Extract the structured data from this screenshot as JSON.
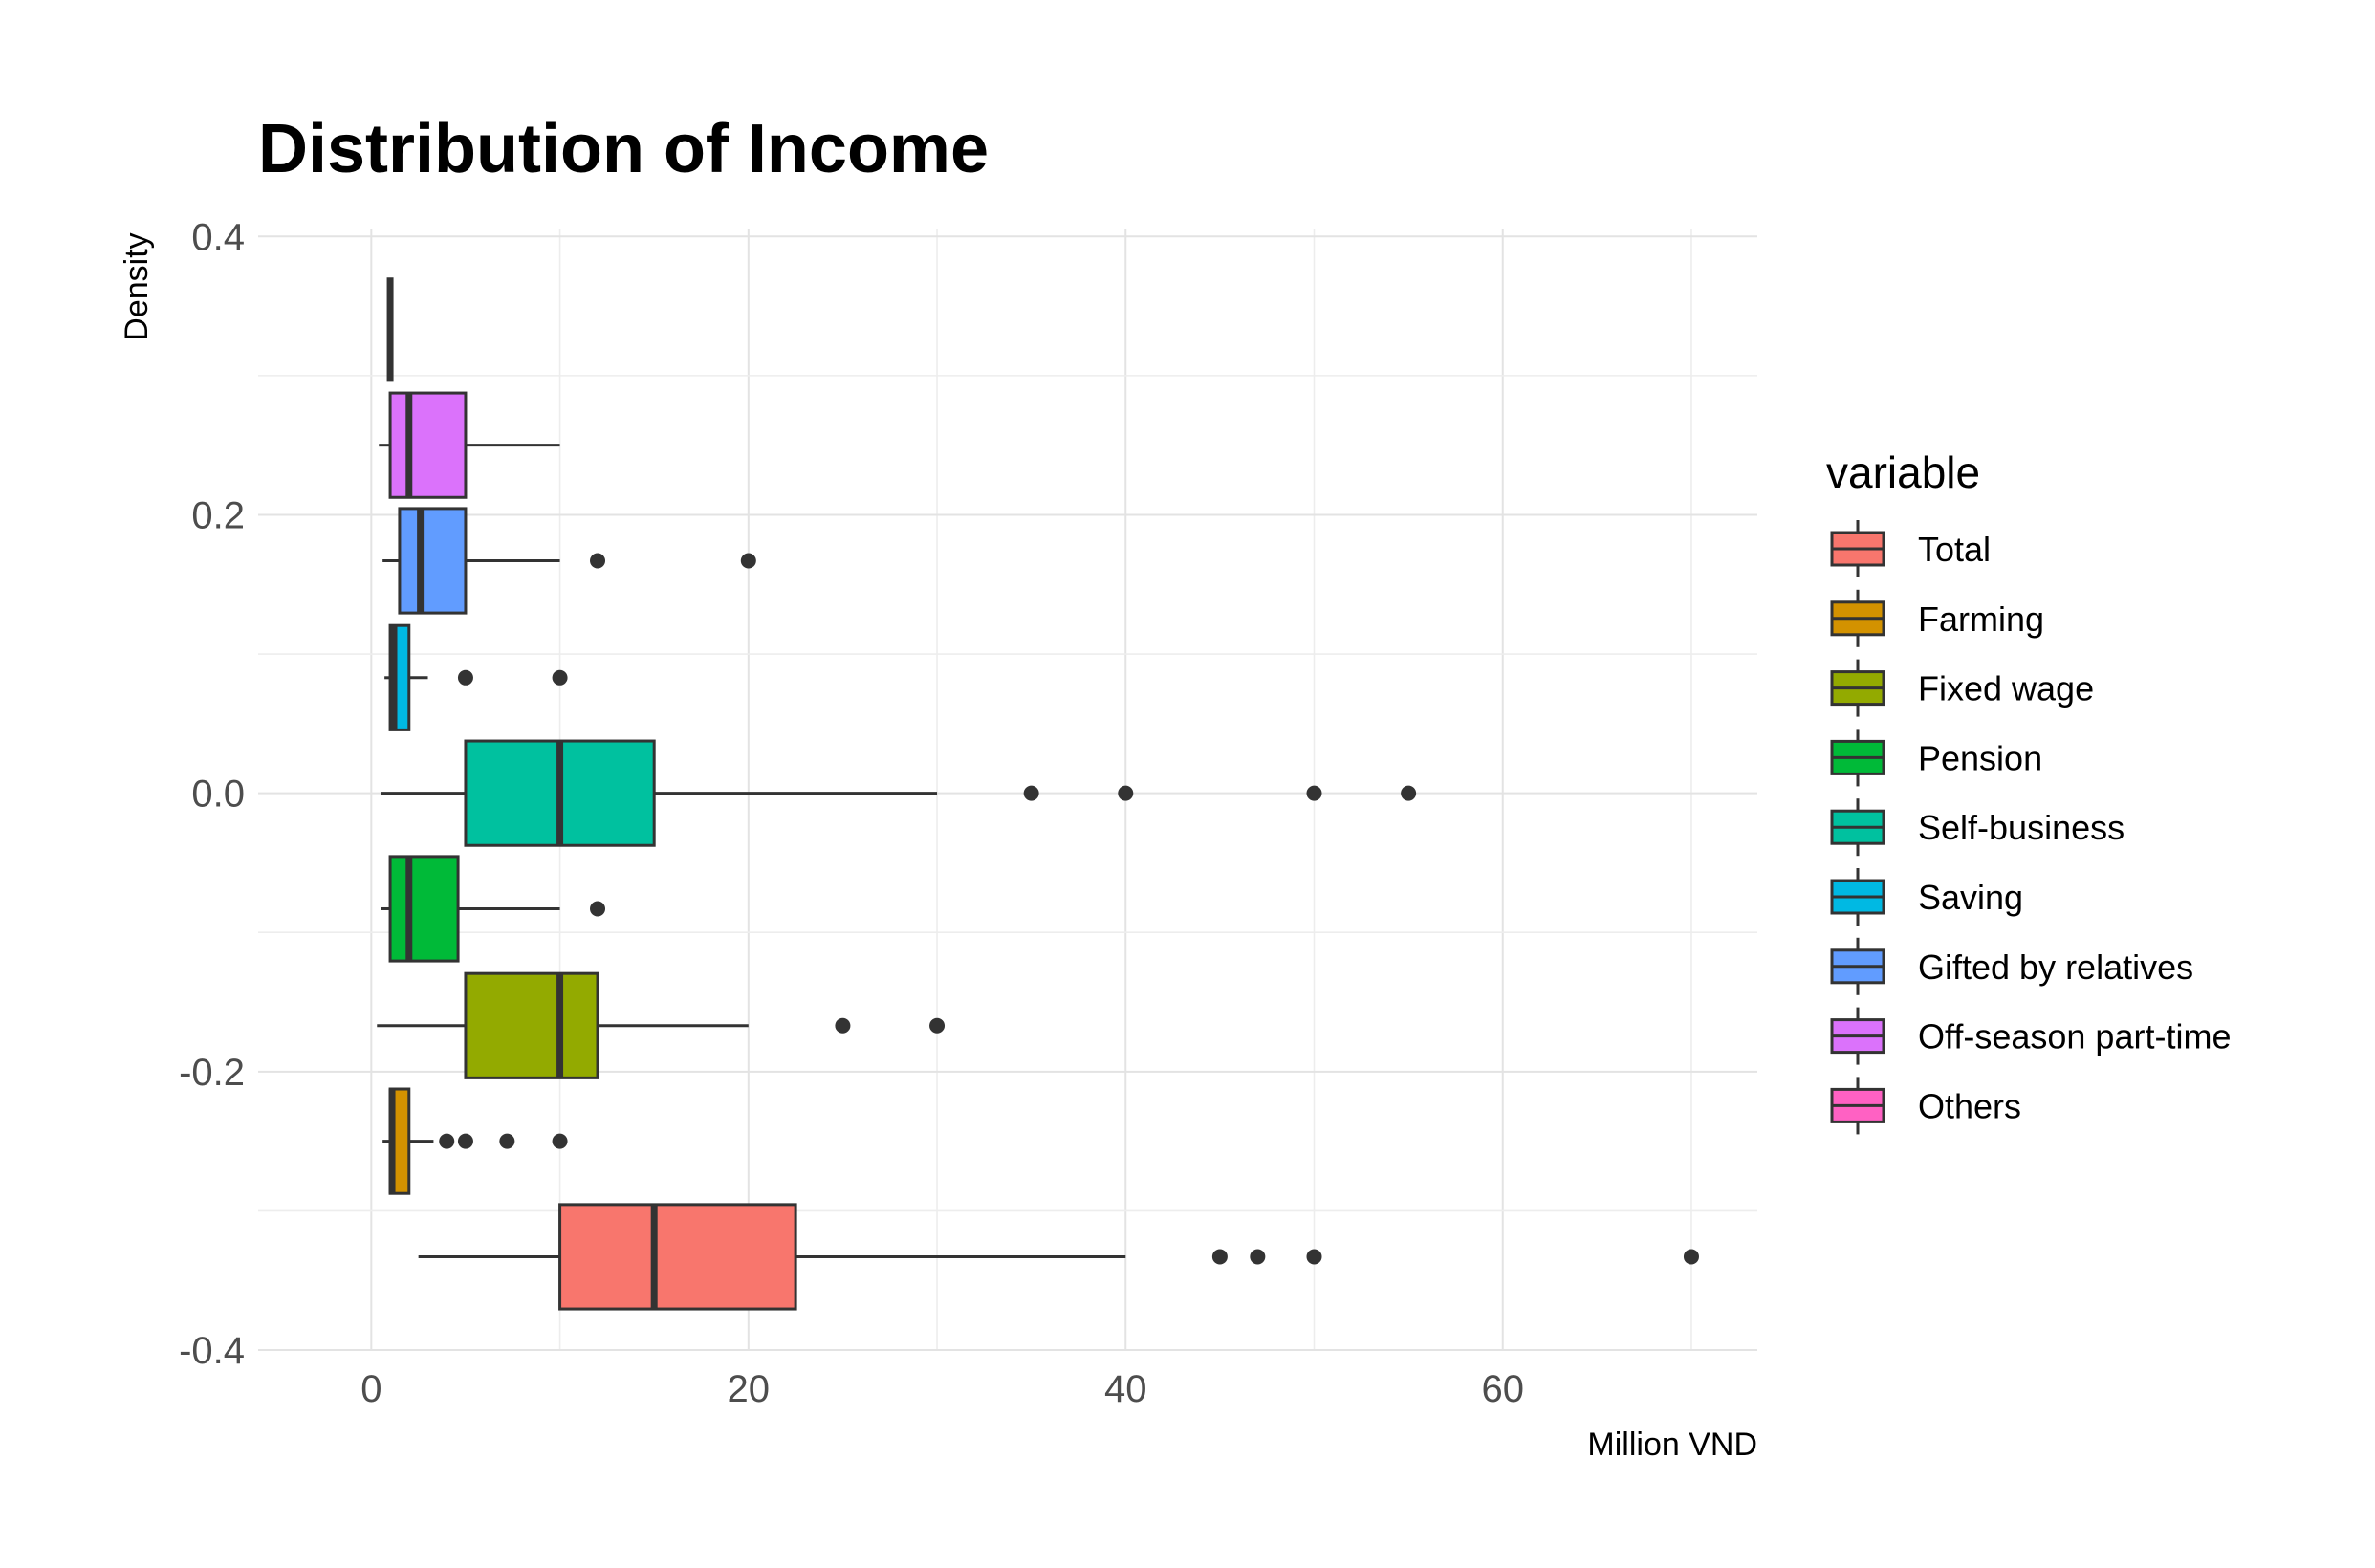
{
  "chart_data": {
    "type": "boxplot",
    "title": "Distribution of Income",
    "xlabel": "Million VND",
    "ylabel": "Density",
    "xlim": [
      -6,
      73.5
    ],
    "ylim": [
      -0.4,
      0.405
    ],
    "x_ticks": [
      0,
      20,
      40,
      60
    ],
    "x_tick_labels": [
      "0",
      "20",
      "40",
      "60"
    ],
    "y_ticks": [
      0.4,
      0.2,
      0.0,
      -0.2,
      -0.4
    ],
    "y_tick_labels": [
      "0.4",
      "0.2",
      "0.0",
      "-0.2",
      "-0.4"
    ],
    "grid": true,
    "legend_title": "variable",
    "legend_position": "right",
    "series": [
      {
        "name": "Total",
        "color": "#F8766D",
        "y": -0.333,
        "whisker_low": 2.5,
        "q1": 10,
        "median": 15,
        "q3": 22.5,
        "whisker_high": 40,
        "outliers": [
          45,
          47,
          50,
          70
        ]
      },
      {
        "name": "Farming",
        "color": "#D39200",
        "y": -0.25,
        "whisker_low": 0.6,
        "q1": 1,
        "median": 1.1,
        "q3": 2,
        "whisker_high": 3.3,
        "outliers": [
          4,
          5,
          7.2,
          10
        ]
      },
      {
        "name": "Fixed wage",
        "color": "#93AA00",
        "y": -0.167,
        "whisker_low": 0.3,
        "q1": 5,
        "median": 10,
        "q3": 12,
        "whisker_high": 20,
        "outliers": [
          25,
          30
        ]
      },
      {
        "name": "Pension",
        "color": "#00BA38",
        "y": -0.083,
        "whisker_low": 0.5,
        "q1": 1,
        "median": 2,
        "q3": 4.6,
        "whisker_high": 10,
        "outliers": [
          12
        ]
      },
      {
        "name": "Self-business",
        "color": "#00C19F",
        "y": 0.0,
        "whisker_low": 0.5,
        "q1": 5,
        "median": 10,
        "q3": 15,
        "whisker_high": 30,
        "outliers": [
          35,
          40,
          50,
          55
        ]
      },
      {
        "name": "Saving",
        "color": "#00B9E3",
        "y": 0.083,
        "whisker_low": 0.7,
        "q1": 1,
        "median": 1.2,
        "q3": 2,
        "whisker_high": 3,
        "outliers": [
          5,
          10
        ]
      },
      {
        "name": "Gifted by relatives",
        "color": "#619CFF",
        "y": 0.167,
        "whisker_low": 0.6,
        "q1": 1.5,
        "median": 2.6,
        "q3": 5,
        "whisker_high": 10,
        "outliers": [
          12,
          20
        ]
      },
      {
        "name": "Off-season part-time",
        "color": "#DB72FB",
        "y": 0.25,
        "whisker_low": 0.4,
        "q1": 1,
        "median": 2,
        "q3": 5,
        "whisker_high": 10,
        "outliers": []
      },
      {
        "name": "Others",
        "color": "#FF61C3",
        "y": 0.333,
        "whisker_low": 1,
        "q1": 1,
        "median": 1,
        "q3": 1,
        "whisker_high": 1,
        "outliers": []
      }
    ]
  }
}
